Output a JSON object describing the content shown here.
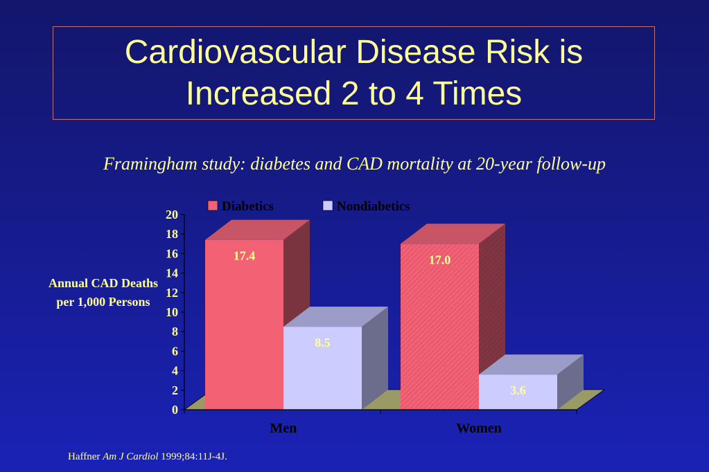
{
  "slide": {
    "title": "Cardiovascular Disease Risk is Increased 2 to 4 Times",
    "subtitle": "Framingham study: diabetes and CAD mortality at 20-year follow-up",
    "citation": {
      "author": "Haffner ",
      "journal": "Am J Cardiol",
      "details": " 1999;84:11J-4J."
    }
  },
  "chart_data": {
    "type": "bar",
    "ylabel": "Annual CAD Deaths per 1,000 Persons",
    "xlabel": "",
    "categories": [
      "Men",
      "Women"
    ],
    "series": [
      {
        "name": "Diabetics",
        "values": [
          17.4,
          17.0
        ],
        "labels": [
          "17.4",
          "17.0"
        ],
        "color": "#f26274"
      },
      {
        "name": "Nondiabetics",
        "values": [
          8.5,
          3.6
        ],
        "labels": [
          "8.5",
          "3.6"
        ],
        "color": "#ccccff"
      }
    ],
    "ylim": [
      0,
      20
    ],
    "yticks": [
      "0",
      "2",
      "4",
      "6",
      "8",
      "10",
      "12",
      "14",
      "16",
      "18",
      "20"
    ],
    "legend_position": "top",
    "grid": false,
    "three_d": true
  }
}
